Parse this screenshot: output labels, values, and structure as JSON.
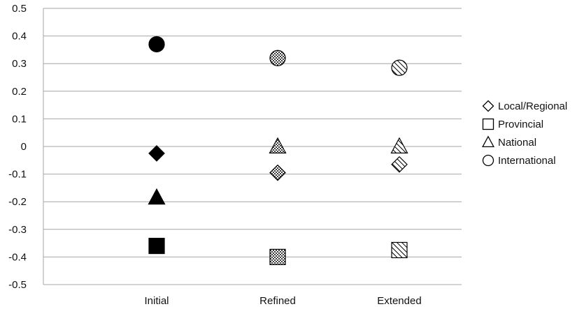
{
  "chart_data": {
    "type": "scatter",
    "title": "",
    "xlabel": "",
    "ylabel": "",
    "categories": [
      "Initial",
      "Refined",
      "Extended"
    ],
    "ylim": [
      -0.5,
      0.5
    ],
    "yticks": [
      "0.5",
      "0.4",
      "0.3",
      "0.2",
      "0.1",
      "0",
      "-0.1",
      "-0.2",
      "-0.3",
      "-0.4",
      "-0.5"
    ],
    "grid": true,
    "legend_position": "right",
    "series": [
      {
        "name": "Local/Regional",
        "marker": "diamond",
        "values": [
          -0.025,
          -0.095,
          -0.065
        ]
      },
      {
        "name": "Provincial",
        "marker": "square",
        "values": [
          -0.36,
          -0.4,
          -0.375
        ]
      },
      {
        "name": "National",
        "marker": "triangle",
        "values": [
          -0.185,
          0.0,
          0.0
        ]
      },
      {
        "name": "International",
        "marker": "circle",
        "values": [
          0.37,
          0.32,
          0.285
        ]
      }
    ],
    "category_fills": [
      "solid",
      "dotted",
      "hatched"
    ]
  }
}
